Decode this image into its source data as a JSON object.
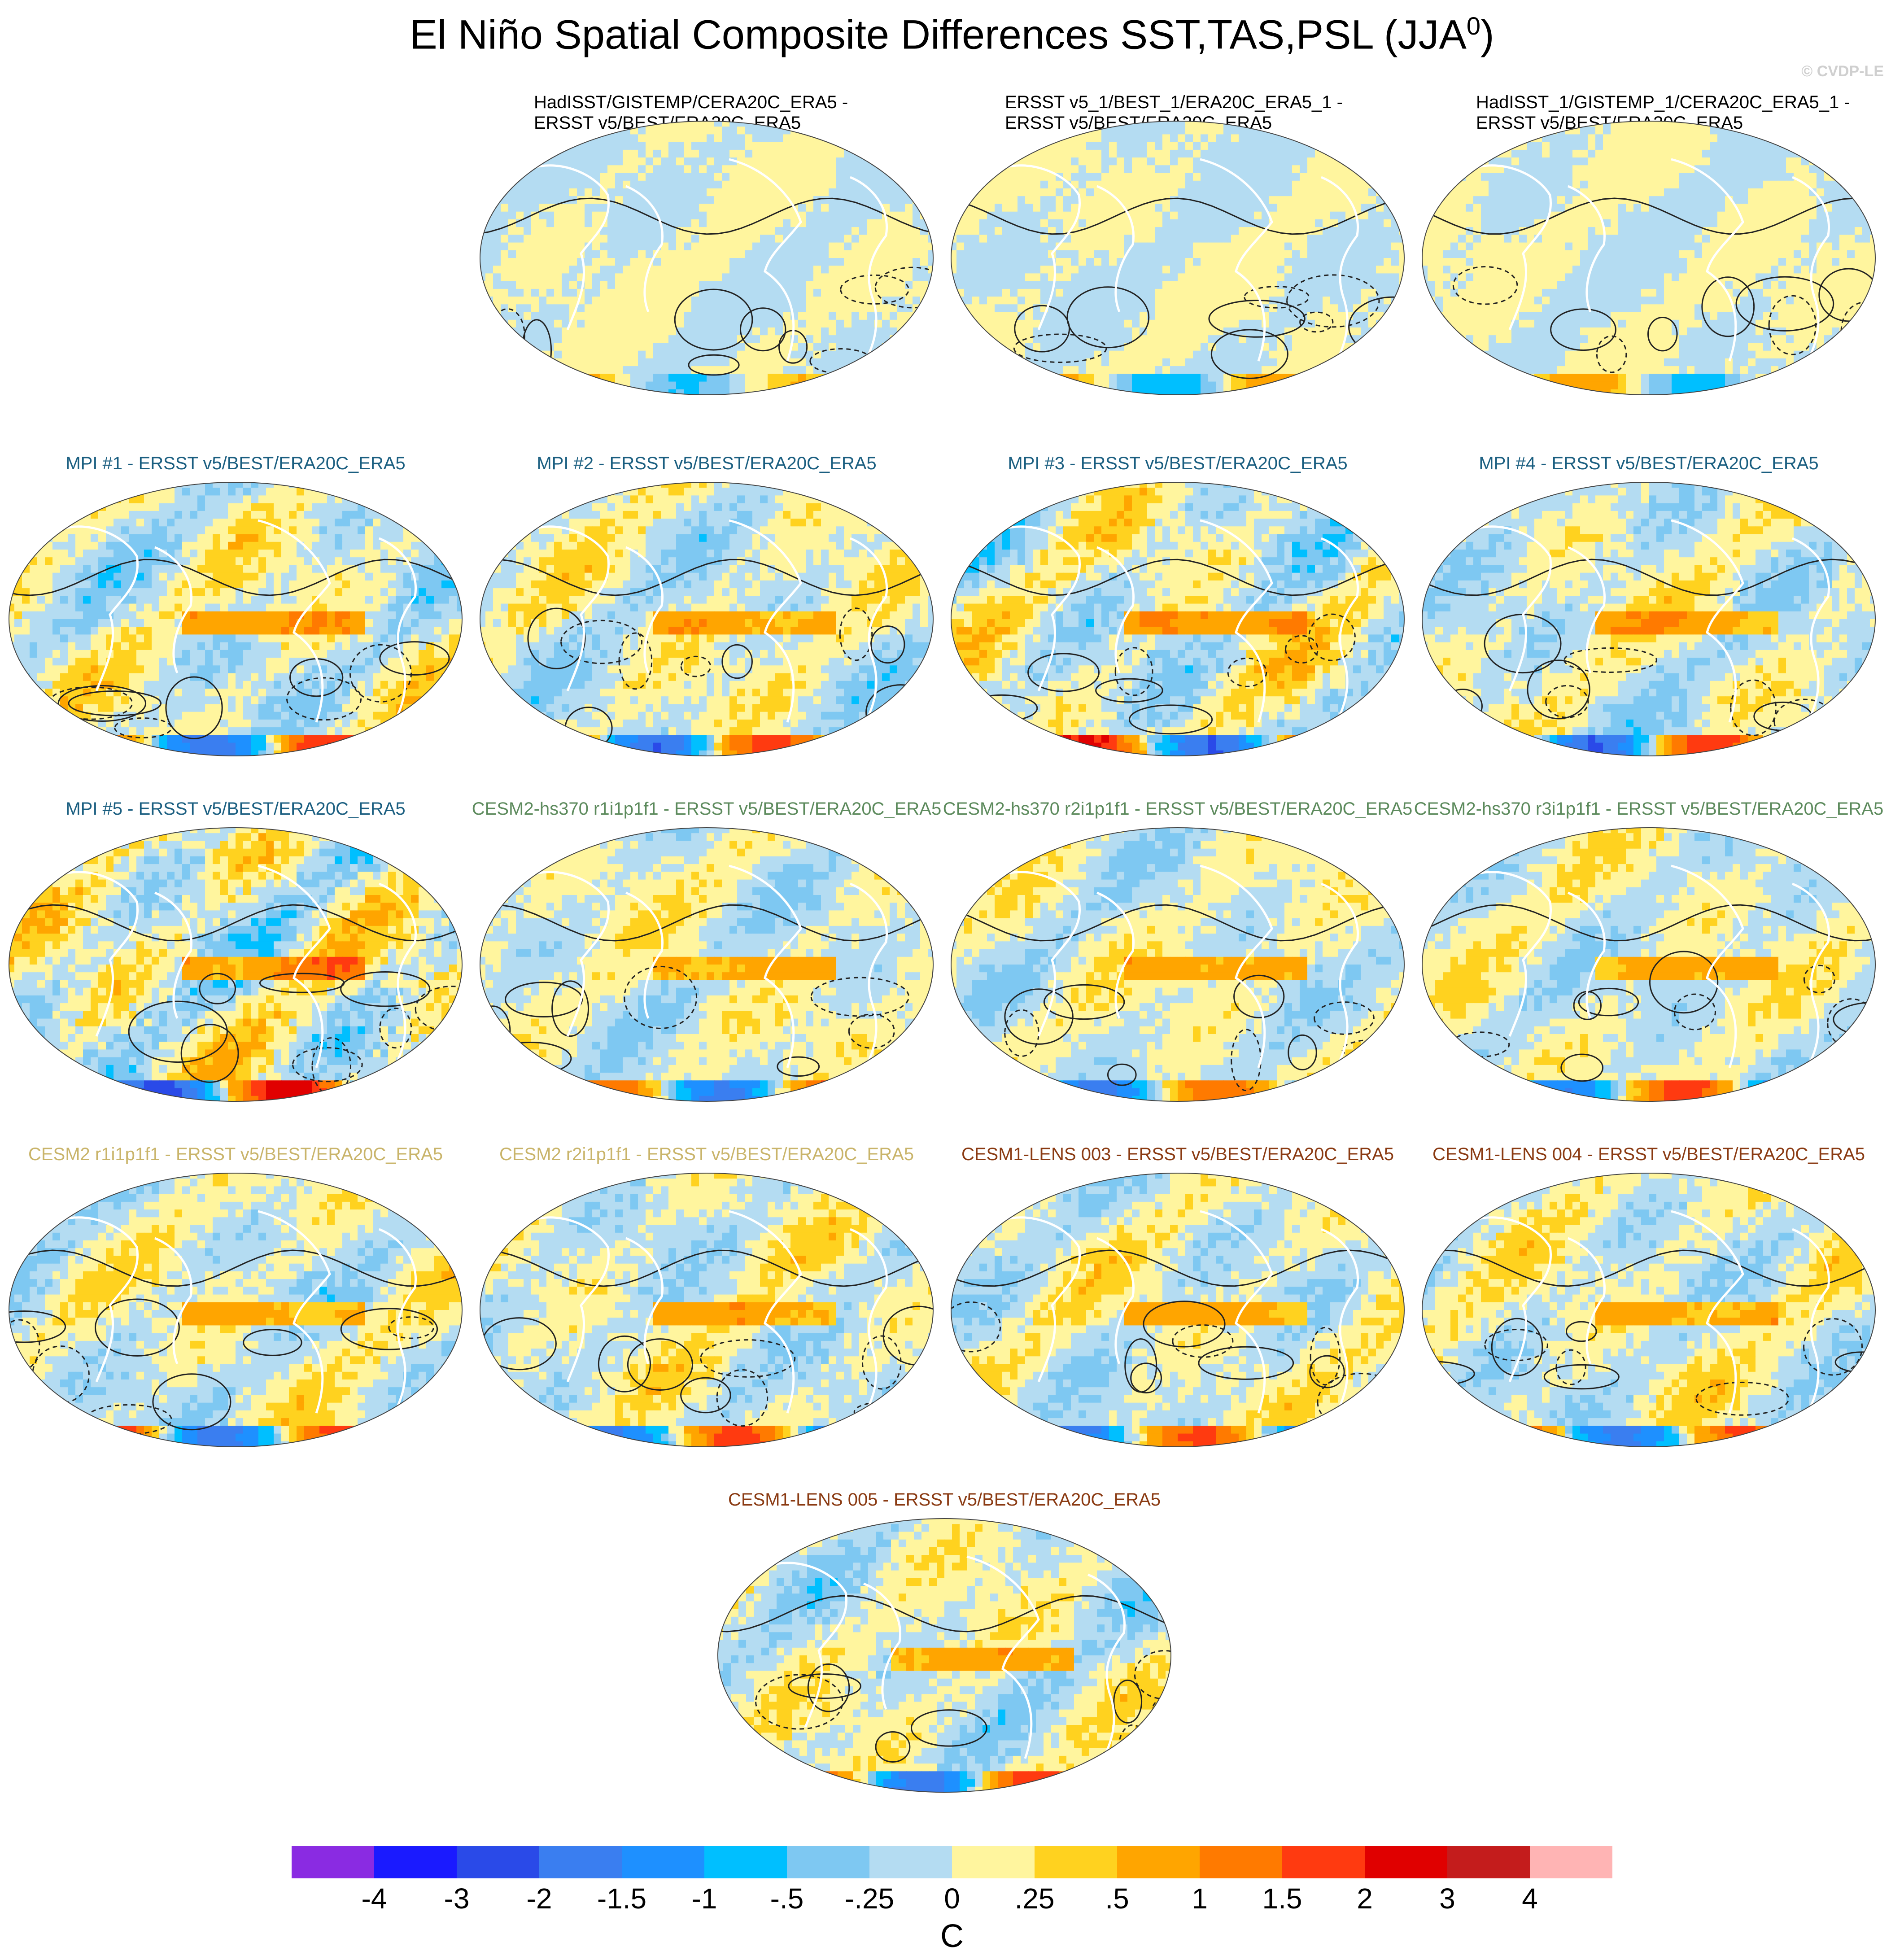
{
  "title": "El Niño Spatial Composite Differences SST,TAS,PSL (JJA",
  "title_superscript": "0",
  "title_close": ")",
  "watermark": "© CVDP-LE",
  "chart_data": {
    "type": "map-grid",
    "panels": [
      {
        "line1": "HadISST/GISTEMP/CERA20C_ERA5 -",
        "line2": "ERSST v5/BEST/ERA20C_ERA5",
        "color": "#000000",
        "seed": 11,
        "amp": 0.25
      },
      {
        "line1": "ERSST v5_1/BEST_1/ERA20C_ERA5_1 -",
        "line2": "ERSST v5/BEST/ERA20C_ERA5",
        "color": "#000000",
        "seed": 23,
        "amp": 0.35
      },
      {
        "line1": "HadISST_1/GISTEMP_1/CERA20C_ERA5_1 -",
        "line2": "ERSST v5/BEST/ERA20C_ERA5",
        "color": "#000000",
        "seed": 37,
        "amp": 0.3
      },
      {
        "line1": "MPI #1 - ERSST v5/BEST/ERA20C_ERA5",
        "line2": "",
        "color": "#1a5e80",
        "seed": 41,
        "amp": 0.9
      },
      {
        "line1": "MPI #2 - ERSST v5/BEST/ERA20C_ERA5",
        "line2": "",
        "color": "#1a5e80",
        "seed": 53,
        "amp": 0.8
      },
      {
        "line1": "MPI #3 - ERSST v5/BEST/ERA20C_ERA5",
        "line2": "",
        "color": "#1a5e80",
        "seed": 67,
        "amp": 1.0
      },
      {
        "line1": "MPI #4 - ERSST v5/BEST/ERA20C_ERA5",
        "line2": "",
        "color": "#1a5e80",
        "seed": 71,
        "amp": 0.8
      },
      {
        "line1": "MPI #5 - ERSST v5/BEST/ERA20C_ERA5",
        "line2": "",
        "color": "#1a5e80",
        "seed": 83,
        "amp": 1.2
      },
      {
        "line1": "CESM2-hs370 r1i1p1f1 - ERSST v5/BEST/ERA20C_ERA5",
        "line2": "",
        "color": "#5c8a5c",
        "seed": 97,
        "amp": 0.7
      },
      {
        "line1": "CESM2-hs370 r2i1p1f1 - ERSST v5/BEST/ERA20C_ERA5",
        "line2": "",
        "color": "#5c8a5c",
        "seed": 101,
        "amp": 0.7
      },
      {
        "line1": "CESM2-hs370 r3i1p1f1 - ERSST v5/BEST/ERA20C_ERA5",
        "line2": "",
        "color": "#5c8a5c",
        "seed": 113,
        "amp": 0.7
      },
      {
        "line1": "CESM2 r1i1p1f1 - ERSST v5/BEST/ERA20C_ERA5",
        "line2": "",
        "color": "#c9b46a",
        "seed": 127,
        "amp": 0.8
      },
      {
        "line1": "CESM2 r2i1p1f1 - ERSST v5/BEST/ERA20C_ERA5",
        "line2": "",
        "color": "#c9b46a",
        "seed": 131,
        "amp": 0.8
      },
      {
        "line1": "CESM1-LENS 003 - ERSST v5/BEST/ERA20C_ERA5",
        "line2": "",
        "color": "#8a3a12",
        "seed": 149,
        "amp": 0.8
      },
      {
        "line1": "CESM1-LENS 004 - ERSST v5/BEST/ERA20C_ERA5",
        "line2": "",
        "color": "#8a3a12",
        "seed": 151,
        "amp": 0.8
      },
      {
        "line1": "CESM1-LENS 005 - ERSST v5/BEST/ERA20C_ERA5",
        "line2": "",
        "color": "#8a3a12",
        "seed": 163,
        "amp": 0.8
      }
    ],
    "colorbar": {
      "levels": [
        -4,
        -3,
        -2,
        -1.5,
        -1,
        -0.5,
        -0.25,
        0,
        0.25,
        0.5,
        1,
        1.5,
        2,
        3,
        4
      ],
      "tick_labels": [
        "-4",
        "-3",
        "-2",
        "-1.5",
        "-1",
        "-.5",
        "-.25",
        "0",
        ".25",
        ".5",
        "1",
        "1.5",
        "2",
        "3",
        "4"
      ],
      "colors": [
        "#8a2be2",
        "#1a1aff",
        "#2a4ae8",
        "#3a7ef0",
        "#1e90ff",
        "#00bfff",
        "#7ec8f2",
        "#b4dcf2",
        "#fff59e",
        "#ffd21f",
        "#ffa500",
        "#ff7a00",
        "#ff3a10",
        "#e00000",
        "#c41c1c",
        "#ffb4b4"
      ],
      "units": "C"
    }
  }
}
